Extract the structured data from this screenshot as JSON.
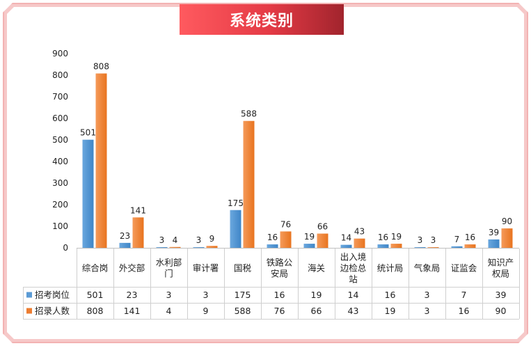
{
  "title": "系统类别",
  "colors": {
    "series1": "#5b9bd5",
    "series2": "#ed7d31"
  },
  "chart_data": {
    "type": "bar",
    "categories": [
      "综合岗",
      "外交部",
      "水利部门",
      "审计署",
      "国税",
      "铁路公安局",
      "海关",
      "出入境边检总站",
      "统计局",
      "气象局",
      "证监会",
      "知识产权局"
    ],
    "category_lines": [
      [
        "综合岗"
      ],
      [
        "外交部"
      ],
      [
        "水利部",
        "门"
      ],
      [
        "审计署"
      ],
      [
        "国税"
      ],
      [
        "铁路公",
        "安局"
      ],
      [
        "海关"
      ],
      [
        "出入境",
        "边检总",
        "站"
      ],
      [
        "统计局"
      ],
      [
        "气象局"
      ],
      [
        "证监会"
      ],
      [
        "知识产",
        "权局"
      ]
    ],
    "series": [
      {
        "name": "招考岗位",
        "values": [
          501,
          23,
          3,
          3,
          175,
          16,
          19,
          14,
          16,
          3,
          7,
          39
        ]
      },
      {
        "name": "招录人数",
        "values": [
          808,
          141,
          4,
          9,
          588,
          76,
          66,
          43,
          19,
          3,
          16,
          90
        ]
      }
    ],
    "ylim": [
      0,
      900
    ],
    "yticks": [
      0,
      100,
      200,
      300,
      400,
      500,
      600,
      700,
      800,
      900
    ],
    "grid": false,
    "legend": "data-table"
  }
}
